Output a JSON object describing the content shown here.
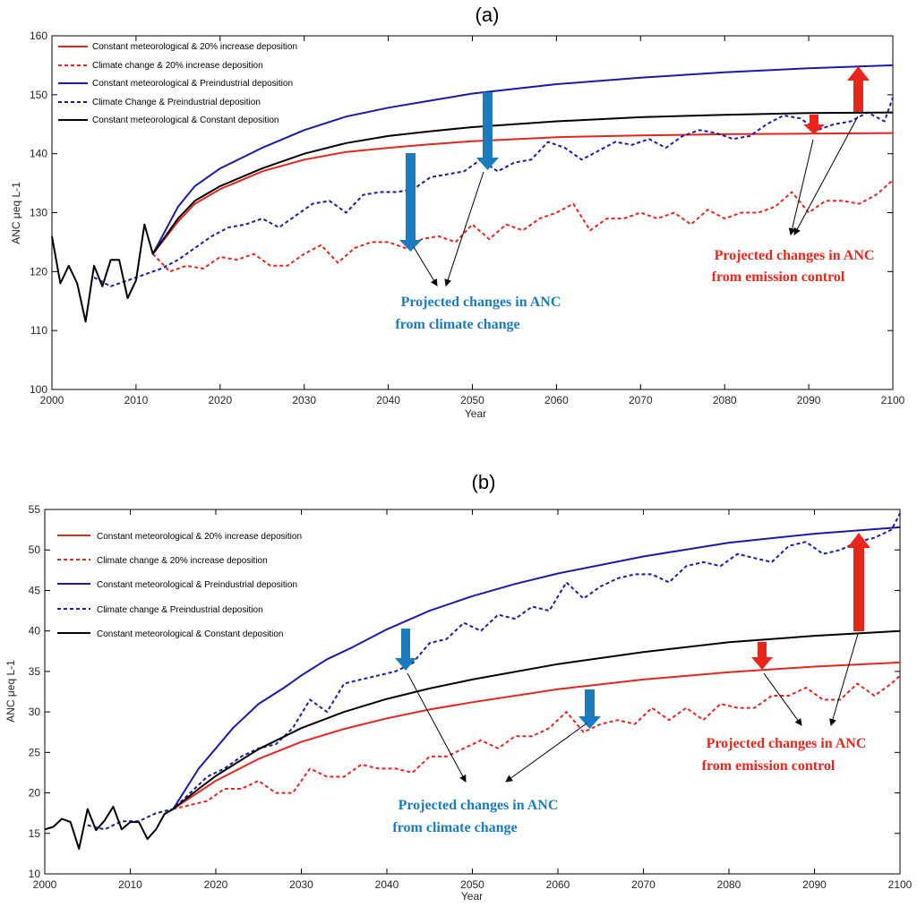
{
  "chart_data": [
    {
      "type": "line",
      "title": "(a)",
      "xlabel": "Year",
      "ylabel": "ANC μeq L-1",
      "xlim": [
        2000,
        2100
      ],
      "ylim": [
        100,
        160
      ],
      "xticks": [
        "2000",
        "2010",
        "2020",
        "2030",
        "2040",
        "2050",
        "2060",
        "2070",
        "2080",
        "2090",
        "2100"
      ],
      "yticks": [
        "100",
        "110",
        "120",
        "130",
        "140",
        "150",
        "160"
      ],
      "legend_position": "top-left",
      "grid": false,
      "series": [
        {
          "name": "Constant meteorological & 20% increase deposition",
          "color": "#e3261e",
          "dash": "solid",
          "x": [
            2012,
            2015,
            2017,
            2020,
            2025,
            2030,
            2035,
            2040,
            2045,
            2050,
            2060,
            2070,
            2080,
            2090,
            2100
          ],
          "y": [
            123,
            128.5,
            131.5,
            134,
            137,
            139,
            140.3,
            141,
            141.6,
            142.1,
            142.8,
            143.1,
            143.3,
            143.4,
            143.5
          ]
        },
        {
          "name": "Climate change & 20% increase deposition",
          "color": "#e3261e",
          "dash": "dashed",
          "x": [
            2012,
            2014,
            2016,
            2018,
            2020,
            2022,
            2024,
            2026,
            2028,
            2030,
            2032,
            2034,
            2036,
            2038,
            2040,
            2042,
            2044,
            2046,
            2048,
            2050,
            2052,
            2054,
            2056,
            2058,
            2060,
            2062,
            2064,
            2066,
            2068,
            2070,
            2072,
            2074,
            2076,
            2078,
            2080,
            2082,
            2084,
            2086,
            2088,
            2090,
            2092,
            2094,
            2096,
            2098,
            2100
          ],
          "y": [
            123,
            120,
            121,
            120.5,
            122.5,
            122,
            123,
            121,
            121,
            123,
            124.5,
            121.5,
            124,
            125,
            125,
            124,
            125.5,
            126,
            125,
            128,
            125.5,
            128,
            127,
            129,
            130,
            131.5,
            127,
            129,
            129,
            130,
            129,
            130,
            128,
            130.5,
            129,
            130,
            130,
            131,
            133.5,
            130,
            132,
            132,
            131.5,
            133,
            135.5
          ]
        },
        {
          "name": "Constant meteorological & Preindustrial deposition",
          "color": "#1a1aa8",
          "dash": "solid",
          "x": [
            2012,
            2015,
            2017,
            2020,
            2025,
            2030,
            2035,
            2040,
            2045,
            2050,
            2060,
            2070,
            2080,
            2090,
            2100
          ],
          "y": [
            123,
            131,
            134.5,
            137.5,
            141,
            144,
            146.3,
            147.8,
            149,
            150.2,
            151.8,
            152.9,
            153.8,
            154.5,
            155
          ]
        },
        {
          "name": "Climate Change & Preindustrial deposition",
          "color": "#1a1aa8",
          "dash": "dashed",
          "x": [
            2005,
            2007,
            2009,
            2011,
            2013,
            2015,
            2017,
            2019,
            2021,
            2023,
            2025,
            2027,
            2029,
            2031,
            2033,
            2035,
            2037,
            2039,
            2041,
            2043,
            2045,
            2047,
            2049,
            2051,
            2053,
            2055,
            2057,
            2059,
            2061,
            2063,
            2065,
            2067,
            2069,
            2071,
            2073,
            2075,
            2077,
            2079,
            2081,
            2083,
            2085,
            2087,
            2089,
            2091,
            2093,
            2095,
            2097,
            2099,
            2100
          ],
          "y": [
            119,
            117.5,
            118.5,
            119.5,
            120.5,
            122,
            124,
            126,
            127.5,
            128,
            129,
            127.5,
            129.5,
            131.5,
            132,
            130,
            133,
            133.5,
            133.5,
            134,
            136,
            136.5,
            137,
            139,
            137,
            138.5,
            139,
            142,
            141,
            139,
            140.5,
            142,
            141.5,
            142.5,
            141,
            143,
            144,
            143.5,
            142.5,
            143,
            145,
            146.5,
            146,
            144,
            145,
            145.5,
            147,
            145.5,
            149.5
          ]
        },
        {
          "name": "Constant meteorological & Constant deposition",
          "color": "#000000",
          "dash": "solid",
          "x": [
            2000,
            2001,
            2002,
            2003,
            2004,
            2005,
            2006,
            2007,
            2008,
            2009,
            2010,
            2011,
            2012,
            2015,
            2017,
            2020,
            2025,
            2030,
            2035,
            2040,
            2045,
            2050,
            2060,
            2070,
            2080,
            2090,
            2100
          ],
          "y": [
            126,
            118,
            121,
            118,
            111.5,
            121,
            117.5,
            122,
            122,
            115.5,
            118.5,
            128,
            123,
            129,
            132,
            134.5,
            137.5,
            140,
            141.8,
            143,
            143.8,
            144.5,
            145.5,
            146.2,
            146.6,
            146.9,
            147
          ]
        }
      ],
      "annotations": [
        {
          "text": "Projected changes in ANC",
          "text2": "from climate change",
          "color": "#1a7bbf"
        },
        {
          "text": "Projected changes in ANC",
          "text2": "from emission control",
          "color": "#e8261c"
        }
      ]
    },
    {
      "type": "line",
      "title": "(b)",
      "xlabel": "Year",
      "ylabel": "ANC μeq L-1",
      "xlim": [
        2000,
        2100
      ],
      "ylim": [
        10,
        55
      ],
      "xticks": [
        "2000",
        "2010",
        "2020",
        "2030",
        "2040",
        "2050",
        "2060",
        "2070",
        "2080",
        "2090",
        "2100"
      ],
      "yticks": [
        "10",
        "15",
        "20",
        "25",
        "30",
        "35",
        "40",
        "45",
        "50",
        "55"
      ],
      "legend_position": "top-left",
      "grid": false,
      "series": [
        {
          "name": "Constant meteorological & 20% increase deposition",
          "color": "#e3261e",
          "dash": "solid",
          "x": [
            2015,
            2020,
            2025,
            2030,
            2035,
            2040,
            2045,
            2050,
            2060,
            2070,
            2080,
            2090,
            2100
          ],
          "y": [
            18,
            21.5,
            24.2,
            26.3,
            27.9,
            29.2,
            30.3,
            31.2,
            32.8,
            34,
            34.9,
            35.6,
            36.1
          ]
        },
        {
          "name": "Climate change & 20% increase deposition",
          "color": "#e3261e",
          "dash": "dashed",
          "x": [
            2015,
            2017,
            2019,
            2021,
            2023,
            2025,
            2027,
            2029,
            2031,
            2033,
            2035,
            2037,
            2039,
            2041,
            2043,
            2045,
            2047,
            2049,
            2051,
            2053,
            2055,
            2057,
            2059,
            2061,
            2063,
            2065,
            2067,
            2069,
            2071,
            2073,
            2075,
            2077,
            2079,
            2081,
            2083,
            2085,
            2087,
            2089,
            2091,
            2093,
            2095,
            2097,
            2099,
            2100
          ],
          "y": [
            18,
            18.5,
            19,
            20.5,
            20.5,
            21.5,
            20,
            20,
            23,
            22,
            22,
            23.5,
            23,
            23,
            22.5,
            24.5,
            24.5,
            25.5,
            26.5,
            25.5,
            27,
            27,
            28,
            30,
            27.5,
            28.5,
            29,
            28.5,
            30.5,
            29,
            30.5,
            29,
            31,
            30.5,
            30.5,
            32,
            32,
            33,
            31.5,
            31.5,
            33.5,
            32,
            33.5,
            34.5
          ]
        },
        {
          "name": "Constant meteorological & Preindustrial deposition",
          "color": "#1a1aa8",
          "dash": "solid",
          "x": [
            2015,
            2018,
            2020,
            2022,
            2025,
            2028,
            2030,
            2033,
            2036,
            2040,
            2045,
            2050,
            2055,
            2060,
            2070,
            2080,
            2090,
            2100
          ],
          "y": [
            18,
            23,
            25.5,
            28,
            31,
            33,
            34.5,
            36.5,
            38,
            40.2,
            42.5,
            44.3,
            45.8,
            47.1,
            49.2,
            50.9,
            52,
            52.8
          ]
        },
        {
          "name": "Climate change & Preindustrial deposition",
          "color": "#1a1aa8",
          "dash": "dashed",
          "x": [
            2005,
            2007,
            2009,
            2011,
            2013,
            2015,
            2017,
            2019,
            2021,
            2023,
            2025,
            2027,
            2029,
            2031,
            2033,
            2035,
            2037,
            2039,
            2041,
            2043,
            2045,
            2047,
            2049,
            2051,
            2053,
            2055,
            2057,
            2059,
            2061,
            2063,
            2065,
            2067,
            2069,
            2071,
            2073,
            2075,
            2077,
            2079,
            2081,
            2083,
            2085,
            2087,
            2089,
            2091,
            2093,
            2095,
            2097,
            2099,
            2100
          ],
          "y": [
            16,
            15.5,
            16.5,
            16.5,
            17.5,
            18,
            20,
            22,
            23,
            24.5,
            25.5,
            26,
            28,
            31.5,
            30,
            33.5,
            34,
            34.5,
            35,
            36,
            38.5,
            39,
            41,
            40,
            42,
            41.5,
            43,
            42.5,
            46,
            44,
            45.5,
            46.5,
            47,
            47,
            46,
            48,
            48.5,
            48,
            49.5,
            49,
            48.5,
            50.5,
            51,
            49.5,
            50,
            51,
            51.5,
            52.5,
            54.5
          ]
        },
        {
          "name": "Constant meteorological & Constant deposition",
          "color": "#000000",
          "dash": "solid",
          "x": [
            2000,
            2001,
            2002,
            2003,
            2004,
            2005,
            2006,
            2007,
            2008,
            2009,
            2010,
            2011,
            2012,
            2013,
            2014,
            2015,
            2018,
            2020,
            2025,
            2030,
            2035,
            2040,
            2045,
            2050,
            2060,
            2070,
            2080,
            2090,
            2100
          ],
          "y": [
            15.5,
            15.8,
            16.8,
            16.4,
            13.1,
            18,
            15.4,
            16.6,
            18.3,
            15.5,
            16.4,
            16.4,
            14.3,
            15.5,
            17.4,
            18,
            20.5,
            22.1,
            25.4,
            28,
            30,
            31.6,
            32.9,
            34,
            35.9,
            37.4,
            38.6,
            39.4,
            40
          ]
        }
      ],
      "annotations": [
        {
          "text": "Projected changes in ANC",
          "text2": "from climate change",
          "color": "#1a7bbf"
        },
        {
          "text": "Projected changes in ANC",
          "text2": "from emission control",
          "color": "#e8261c"
        }
      ]
    }
  ]
}
